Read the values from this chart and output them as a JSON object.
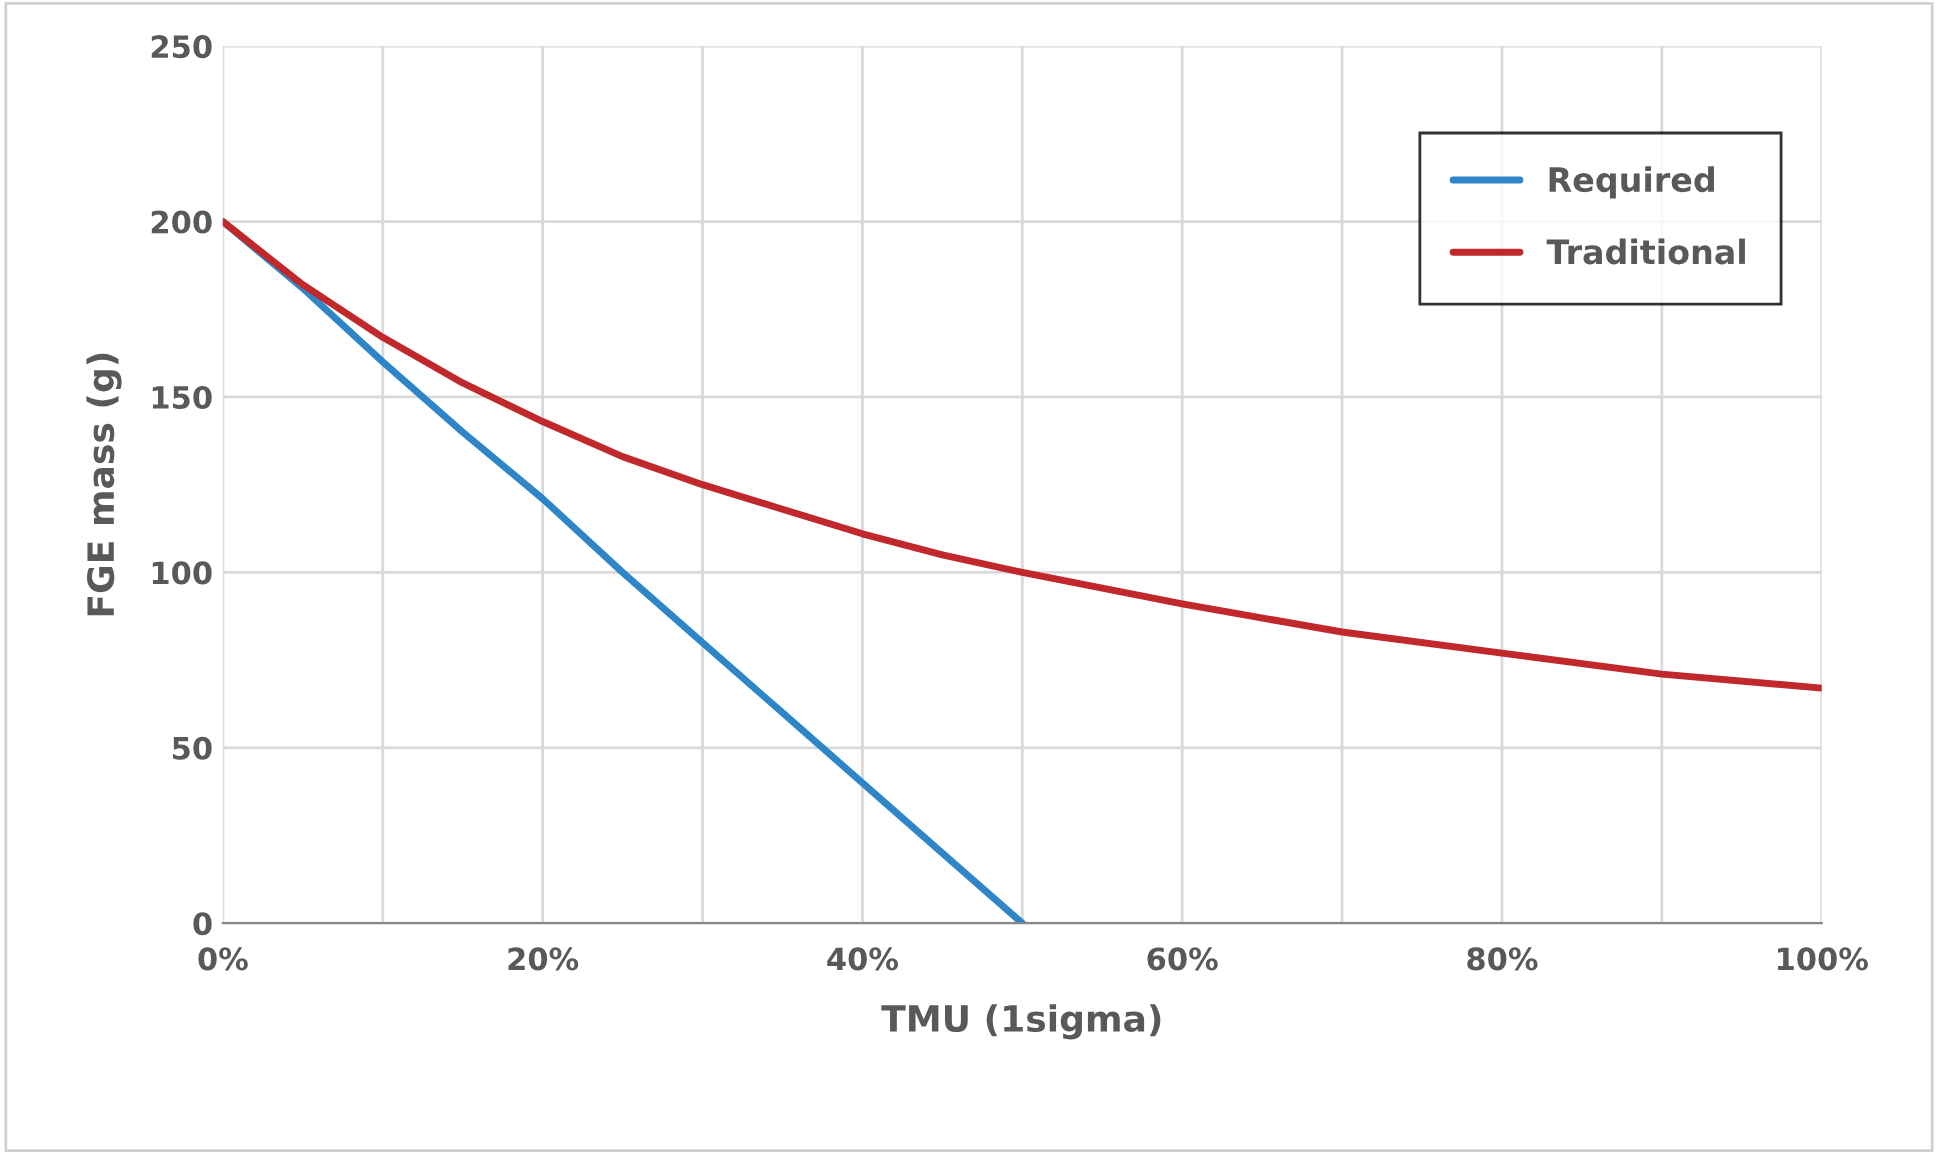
{
  "chart_data": {
    "type": "line",
    "xlabel": "TMU (1sigma)",
    "ylabel": "FGE mass (g)",
    "series": [
      {
        "name": "Required",
        "color": "#2e86c8",
        "x": [
          0,
          5,
          10,
          15,
          20,
          25,
          30,
          35,
          40,
          45,
          50
        ],
        "values": [
          200,
          181,
          160,
          140,
          121,
          100,
          80,
          60,
          40,
          20,
          0
        ]
      },
      {
        "name": "Traditional",
        "color": "#c0282b",
        "x": [
          0,
          5,
          10,
          15,
          20,
          25,
          30,
          35,
          40,
          45,
          50,
          60,
          70,
          80,
          90,
          100
        ],
        "values": [
          200,
          182,
          167,
          154,
          143,
          133,
          125,
          118,
          111,
          105,
          100,
          91,
          83,
          77,
          71,
          67
        ]
      }
    ],
    "xlim": [
      0,
      100
    ],
    "ylim": [
      0,
      250
    ],
    "xticks": [
      {
        "value": 0,
        "label": "0%"
      },
      {
        "value": 10,
        "label": null
      },
      {
        "value": 20,
        "label": "20%"
      },
      {
        "value": 30,
        "label": null
      },
      {
        "value": 40,
        "label": "40%"
      },
      {
        "value": 50,
        "label": null
      },
      {
        "value": 60,
        "label": "60%"
      },
      {
        "value": 70,
        "label": null
      },
      {
        "value": 80,
        "label": "80%"
      },
      {
        "value": 90,
        "label": null
      },
      {
        "value": 100,
        "label": "100%"
      }
    ],
    "yticks": [
      0,
      50,
      100,
      150,
      200,
      250
    ],
    "grid": true,
    "legend": "top right",
    "marker": "none",
    "line_style": "solid"
  }
}
